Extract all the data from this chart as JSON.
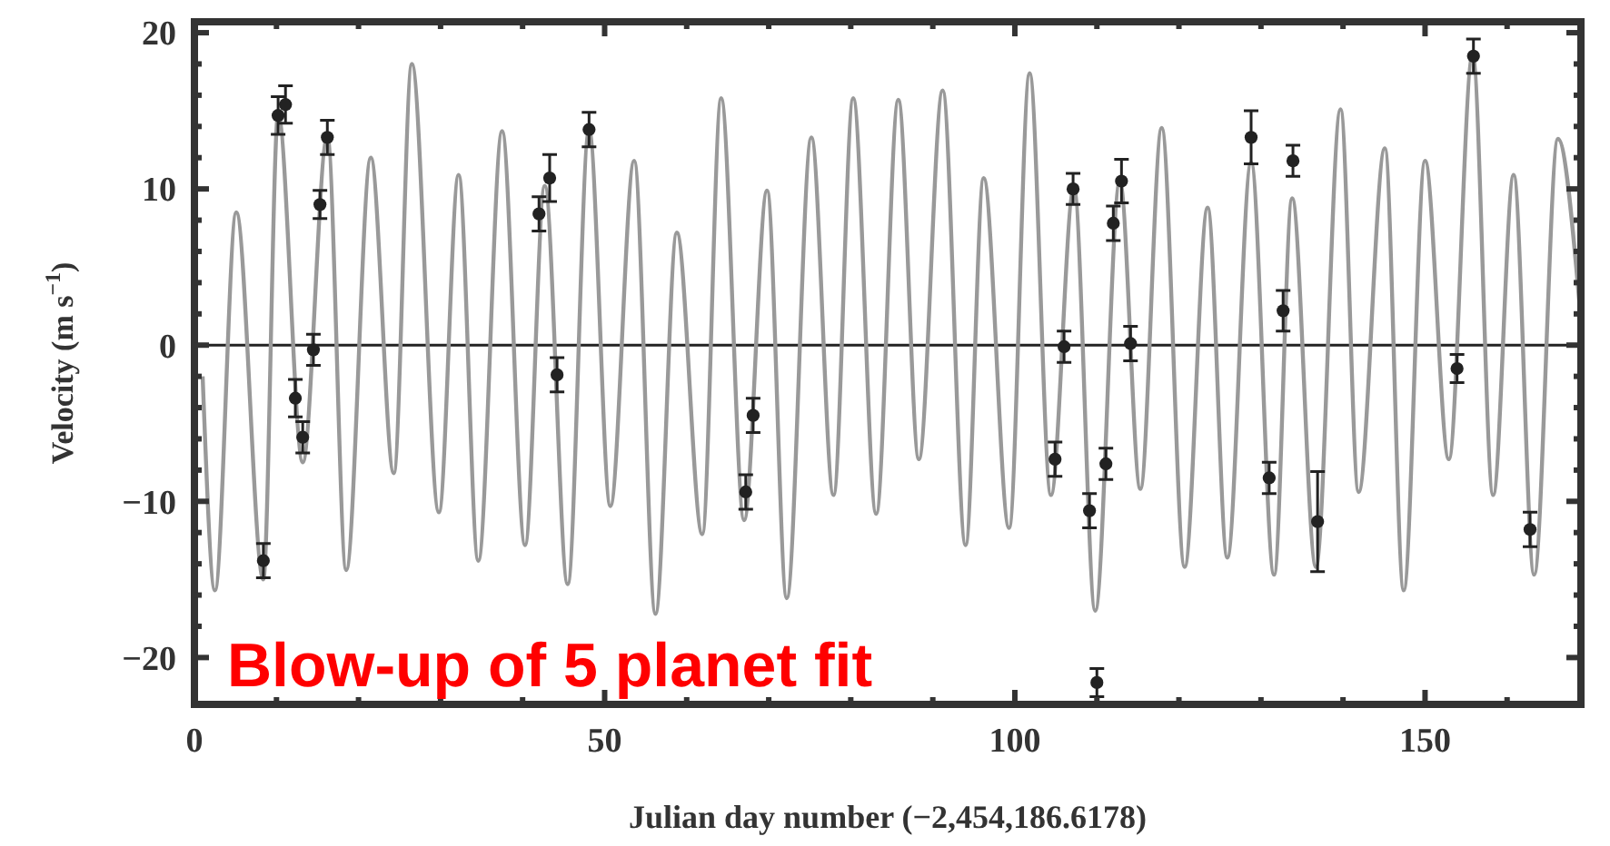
{
  "chart_data": {
    "type": "scatter",
    "xlabel": "Julian day number  (−2,454,186.6178)",
    "ylabel": "Velocity  (m s$^{−1}$)",
    "annotations": [
      "Blow-up of 5 planet fit"
    ],
    "xlim": [
      0,
      169
    ],
    "ylim": [
      -23,
      20.7
    ],
    "xticks": [
      0,
      {
        "value": 10,
        "label": null
      },
      {
        "value": 20,
        "label": null
      },
      {
        "value": 30,
        "label": null
      },
      {
        "value": 40,
        "label": null
      },
      50,
      {
        "value": 60,
        "label": null
      },
      {
        "value": 70,
        "label": null
      },
      {
        "value": 80,
        "label": null
      },
      {
        "value": 90,
        "label": null
      },
      100,
      {
        "value": 110,
        "label": null
      },
      {
        "value": 120,
        "label": null
      },
      {
        "value": 130,
        "label": null
      },
      {
        "value": 140,
        "label": null
      },
      150,
      {
        "value": 160,
        "label": null
      }
    ],
    "yticks": [
      {
        "value": -20,
        "label": "−20"
      },
      {
        "value": -18,
        "label": null
      },
      {
        "value": -16,
        "label": null
      },
      {
        "value": -14,
        "label": null
      },
      {
        "value": -12,
        "label": null
      },
      {
        "value": -10,
        "label": "−10"
      },
      {
        "value": -8,
        "label": null
      },
      {
        "value": -6,
        "label": null
      },
      {
        "value": -4,
        "label": null
      },
      {
        "value": -2,
        "label": null
      },
      0,
      {
        "value": 2,
        "label": null
      },
      {
        "value": 4,
        "label": null
      },
      {
        "value": 6,
        "label": null
      },
      {
        "value": 8,
        "label": null
      },
      10,
      {
        "value": 12,
        "label": null
      },
      {
        "value": 14,
        "label": null
      },
      {
        "value": 16,
        "label": null
      },
      {
        "value": 18,
        "label": null
      },
      20
    ],
    "ref_lines": [
      {
        "axis": "y",
        "value": 0,
        "color": "#222222"
      }
    ],
    "series": [
      {
        "type": "line",
        "color": "#999999",
        "x": [
          1.0,
          2.5,
          5.1,
          8.4,
          10.2,
          13.2,
          16.2,
          18.5,
          21.5,
          24.3,
          26.5,
          29.8,
          32.2,
          34.6,
          37.5,
          40.3,
          42.7,
          45.5,
          48.1,
          50.7,
          53.6,
          56.2,
          58.8,
          61.9,
          64.2,
          67.0,
          69.8,
          72.2,
          75.2,
          77.9,
          80.3,
          83.1,
          85.8,
          88.3,
          91.2,
          94.0,
          96.2,
          99.3,
          101.8,
          104.4,
          107.2,
          109.8,
          112.8,
          115.3,
          117.9,
          120.7,
          123.5,
          125.9,
          128.8,
          131.6,
          133.8,
          136.7,
          139.7,
          141.9,
          145.1,
          147.4,
          150.0,
          152.9,
          155.8,
          158.3,
          160.8,
          163.3,
          166.2,
          168.8
        ],
        "values": [
          -2,
          -15.7,
          8.5,
          -15,
          14.8,
          -7.5,
          13.4,
          -14.4,
          12.0,
          -8.2,
          18.0,
          -10.7,
          10.9,
          -13.8,
          13.7,
          -12.8,
          10.2,
          -15.3,
          13.8,
          -10.3,
          11.8,
          -17.2,
          7.2,
          -12.1,
          15.8,
          -11.2,
          9.9,
          -16.2,
          13.3,
          -9.6,
          15.8,
          -10.8,
          15.7,
          -7.3,
          16.3,
          -12.8,
          10.7,
          -11.7,
          17.4,
          -9.6,
          10.1,
          -17.0,
          10.5,
          -9.2,
          13.9,
          -14.2,
          8.8,
          -13.6,
          11.7,
          -14.7,
          9.4,
          -14.2,
          15.1,
          -9.4,
          12.6,
          -15.7,
          11.8,
          -7.3,
          18.6,
          -9.6,
          10.9,
          -14.7,
          13.2,
          2.8
        ]
      },
      {
        "color": "#222222",
        "marker": "circle",
        "x": [
          8.4,
          10.2,
          11.1,
          12.3,
          13.2,
          14.5,
          15.3,
          16.2,
          42.0,
          43.3,
          44.2,
          48.1,
          67.2,
          68.1,
          104.9,
          106.0,
          107.1,
          109.1,
          110.0,
          111.1,
          112.0,
          113.0,
          114.1,
          128.8,
          131.0,
          132.7,
          133.9,
          136.9,
          153.9,
          155.9,
          162.8
        ],
        "values": [
          -13.8,
          14.7,
          15.4,
          -3.4,
          -5.9,
          -0.3,
          9.0,
          13.3,
          8.4,
          10.7,
          -1.9,
          13.8,
          -9.4,
          -4.5,
          -7.3,
          -0.1,
          10.0,
          -10.6,
          -21.6,
          -7.6,
          7.8,
          10.5,
          0.1,
          13.3,
          -8.5,
          2.2,
          11.8,
          -11.3,
          -1.5,
          18.5,
          -11.8
        ],
        "errors": [
          1.1,
          1.2,
          1.2,
          1.2,
          1.0,
          1.0,
          0.9,
          1.1,
          1.1,
          1.5,
          1.1,
          1.1,
          1.1,
          1.1,
          1.1,
          1.0,
          1.0,
          1.1,
          0.9,
          1.0,
          1.1,
          1.4,
          1.1,
          1.7,
          1.0,
          1.3,
          1.0,
          3.2,
          0.9,
          1.1,
          1.1
        ]
      }
    ]
  }
}
